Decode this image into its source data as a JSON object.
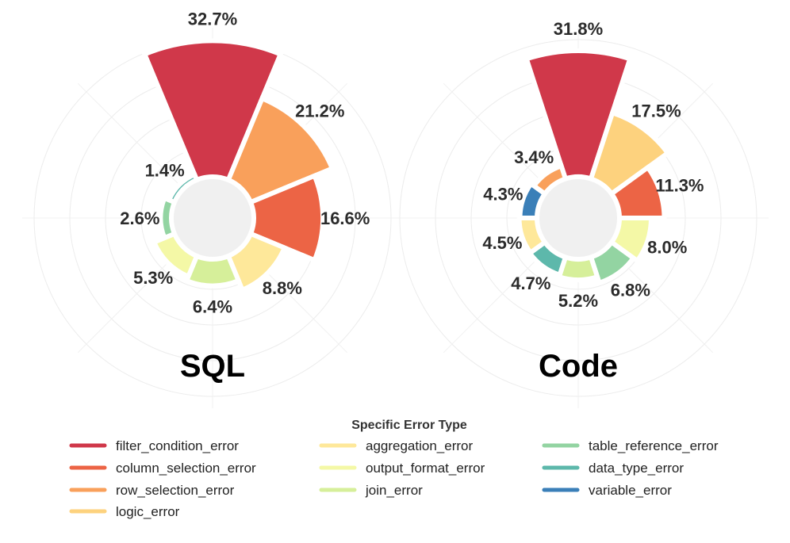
{
  "palette": {
    "filter_condition_error": "#d0384a",
    "column_selection_error": "#ec6445",
    "row_selection_error": "#f9a05b",
    "logic_error": "#fdd27e",
    "aggregation_error": "#fee89a",
    "output_format_error": "#f4f8a6",
    "join_error": "#d6ef9a",
    "table_reference_error": "#93d4a2",
    "data_type_error": "#5db8ab",
    "variable_error": "#3a7fb8"
  },
  "chart_data": [
    {
      "type": "polar-bar",
      "title": "SQL",
      "slices": [
        {
          "category": "filter_condition_error",
          "value": 32.7,
          "label": "32.7%"
        },
        {
          "category": "row_selection_error",
          "value": 21.2,
          "label": "21.2%"
        },
        {
          "category": "column_selection_error",
          "value": 16.6,
          "label": "16.6%"
        },
        {
          "category": "aggregation_error",
          "value": 8.8,
          "label": "8.8%"
        },
        {
          "category": "join_error",
          "value": 6.4,
          "label": "6.4%"
        },
        {
          "category": "output_format_error",
          "value": 5.3,
          "label": "5.3%"
        },
        {
          "category": "table_reference_error",
          "value": 2.6,
          "label": "2.6%"
        },
        {
          "category": "data_type_error",
          "value": 1.4,
          "label": "1.4%"
        }
      ]
    },
    {
      "type": "polar-bar",
      "title": "Code",
      "slices": [
        {
          "category": "filter_condition_error",
          "value": 31.8,
          "label": "31.8%"
        },
        {
          "category": "logic_error",
          "value": 17.5,
          "label": "17.5%"
        },
        {
          "category": "column_selection_error",
          "value": 11.3,
          "label": "11.3%"
        },
        {
          "category": "output_format_error",
          "value": 8.0,
          "label": "8.0%"
        },
        {
          "category": "table_reference_error",
          "value": 6.8,
          "label": "6.8%"
        },
        {
          "category": "join_error",
          "value": 5.2,
          "label": "5.2%"
        },
        {
          "category": "data_type_error",
          "value": 4.7,
          "label": "4.7%"
        },
        {
          "category": "aggregation_error",
          "value": 4.5,
          "label": "4.5%"
        },
        {
          "category": "variable_error",
          "value": 4.3,
          "label": "4.3%"
        },
        {
          "category": "row_selection_error",
          "value": 3.4,
          "label": "3.4%"
        }
      ]
    }
  ],
  "legend": {
    "title": "Specific Error Type",
    "entries": [
      {
        "category": "filter_condition_error",
        "label": "filter_condition_error"
      },
      {
        "category": "column_selection_error",
        "label": "column_selection_error"
      },
      {
        "category": "row_selection_error",
        "label": "row_selection_error"
      },
      {
        "category": "logic_error",
        "label": "logic_error"
      },
      {
        "category": "aggregation_error",
        "label": "aggregation_error"
      },
      {
        "category": "output_format_error",
        "label": "output_format_error"
      },
      {
        "category": "join_error",
        "label": "join_error"
      },
      {
        "category": "table_reference_error",
        "label": "table_reference_error"
      },
      {
        "category": "data_type_error",
        "label": "data_type_error"
      },
      {
        "category": "variable_error",
        "label": "variable_error"
      }
    ]
  }
}
